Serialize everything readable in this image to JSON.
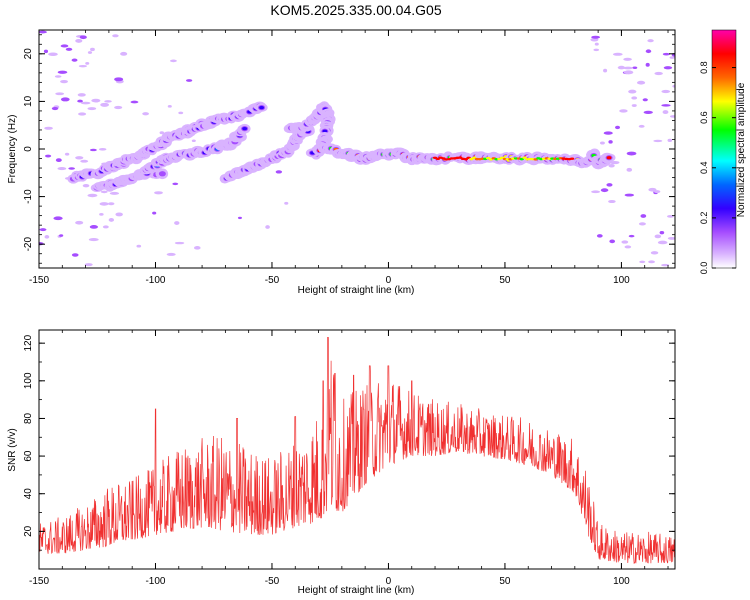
{
  "title": "KOM5.2025.335.00.04.G05",
  "colors": {
    "snr_line": "#f03030",
    "axis": "#000000",
    "background": "#ffffff",
    "colormap": [
      "#ffffff",
      "#d9b3ff",
      "#a64dff",
      "#3300ff",
      "#0066ff",
      "#00ffff",
      "#00ff00",
      "#ffff00",
      "#ff6600",
      "#ff0000",
      "#ff00aa"
    ]
  },
  "chart_data": [
    {
      "type": "heatmap",
      "name": "spectrogram",
      "xlabel": "Height of straight line (km)",
      "ylabel": "Frequency (Hz)",
      "xlim": [
        -150,
        123
      ],
      "ylim": [
        -25,
        25
      ],
      "xticks": [
        -150,
        -100,
        -50,
        0,
        50,
        100
      ],
      "xtick_labels": [
        "-150",
        "-100",
        "-50",
        "0",
        "50",
        "100"
      ],
      "yticks": [
        -20,
        -10,
        0,
        10,
        20
      ],
      "ytick_labels": [
        "-20",
        "-10",
        "0",
        "10",
        "20"
      ],
      "colorbar": {
        "label": "Normalized spectral amplitude",
        "range": [
          0,
          0.95
        ],
        "ticks": [
          0.0,
          0.2,
          0.4,
          0.6,
          0.8
        ],
        "tick_labels": [
          "0.0",
          "0.2",
          "0.4",
          "0.6",
          "0.8"
        ]
      },
      "ridges": [
        {
          "name": "upper-left-track",
          "points": [
            [
              -135,
              -6
            ],
            [
              -125,
              -5
            ],
            [
              -115,
              -3
            ],
            [
              -105,
              -1
            ],
            [
              -95,
              2
            ],
            [
              -85,
              4
            ],
            [
              -75,
              6
            ],
            [
              -65,
              7
            ],
            [
              -55,
              9
            ]
          ],
          "amplitude": 0.28
        },
        {
          "name": "lower-left-track",
          "points": [
            [
              -125,
              -8
            ],
            [
              -115,
              -7
            ],
            [
              -105,
              -5
            ],
            [
              -97,
              -5
            ]
          ],
          "amplitude": 0.25
        },
        {
          "name": "middle-left-track",
          "points": [
            [
              -105,
              -5
            ],
            [
              -95,
              -2
            ],
            [
              -85,
              -1
            ],
            [
              -75,
              0
            ],
            [
              -68,
              1
            ],
            [
              -62,
              4
            ]
          ],
          "amplitude": 0.3
        },
        {
          "name": "lower-middle-track",
          "points": [
            [
              -70,
              -6
            ],
            [
              -60,
              -4
            ],
            [
              -50,
              -2
            ],
            [
              -42,
              0
            ],
            [
              -38,
              3
            ],
            [
              -34,
              4
            ]
          ],
          "amplitude": 0.25
        },
        {
          "name": "central-rise",
          "points": [
            [
              -42,
              4
            ],
            [
              -35,
              5
            ],
            [
              -30,
              7
            ],
            [
              -28,
              9
            ],
            [
              -26,
              7
            ],
            [
              -27,
              2
            ],
            [
              -30,
              0
            ],
            [
              -32,
              -1
            ]
          ],
          "amplitude": 0.3
        },
        {
          "name": "main-track",
          "points": [
            [
              -30,
              0
            ],
            [
              -25,
              0
            ],
            [
              -20,
              -1
            ],
            [
              -15,
              -1.5
            ],
            [
              -10,
              -2
            ],
            [
              -5,
              -1.5
            ],
            [
              0,
              -1
            ],
            [
              5,
              -1
            ],
            [
              10,
              -2
            ],
            [
              15,
              -2
            ],
            [
              20,
              -2
            ],
            [
              30,
              -2
            ],
            [
              40,
              -2
            ],
            [
              50,
              -2
            ],
            [
              60,
              -2
            ],
            [
              70,
              -2
            ],
            [
              80,
              -2.5
            ],
            [
              85,
              -3
            ],
            [
              88,
              -1
            ],
            [
              90,
              -3
            ],
            [
              95,
              -2
            ]
          ],
          "amplitude": 0.75
        }
      ]
    },
    {
      "type": "line",
      "name": "snr",
      "xlabel": "Height of straight line (km)",
      "ylabel": "SNR (v/v)",
      "xlim": [
        -150,
        123
      ],
      "ylim": [
        0,
        127
      ],
      "xticks": [
        -150,
        -100,
        -50,
        0,
        50,
        100
      ],
      "xtick_labels": [
        "-150",
        "-100",
        "-50",
        "0",
        "50",
        "100"
      ],
      "yticks": [
        20,
        40,
        60,
        80,
        100,
        120
      ],
      "ytick_labels": [
        "20",
        "40",
        "60",
        "80",
        "100",
        "120"
      ],
      "envelope": {
        "x": [
          -150,
          -140,
          -130,
          -120,
          -110,
          -100,
          -90,
          -80,
          -70,
          -60,
          -50,
          -40,
          -30,
          -25,
          -20,
          -10,
          0,
          10,
          20,
          30,
          40,
          50,
          60,
          70,
          80,
          85,
          90,
          100,
          110,
          123
        ],
        "base": [
          8,
          8,
          10,
          12,
          15,
          18,
          20,
          22,
          20,
          18,
          18,
          22,
          25,
          30,
          30,
          45,
          55,
          60,
          60,
          62,
          60,
          58,
          55,
          50,
          40,
          20,
          5,
          3,
          3,
          3
        ],
        "peak": [
          25,
          28,
          35,
          45,
          48,
          55,
          65,
          70,
          72,
          65,
          60,
          70,
          85,
          127,
          90,
          100,
          105,
          95,
          90,
          88,
          85,
          82,
          80,
          75,
          70,
          55,
          25,
          20,
          20,
          18
        ]
      },
      "spikes": [
        [
          -100,
          85
        ],
        [
          -65,
          80
        ],
        [
          -40,
          81
        ],
        [
          -28,
          100
        ],
        [
          -26,
          123
        ],
        [
          -23,
          104
        ],
        [
          -15,
          103
        ],
        [
          -8,
          108
        ],
        [
          0,
          108
        ],
        [
          10,
          100
        ]
      ]
    }
  ]
}
